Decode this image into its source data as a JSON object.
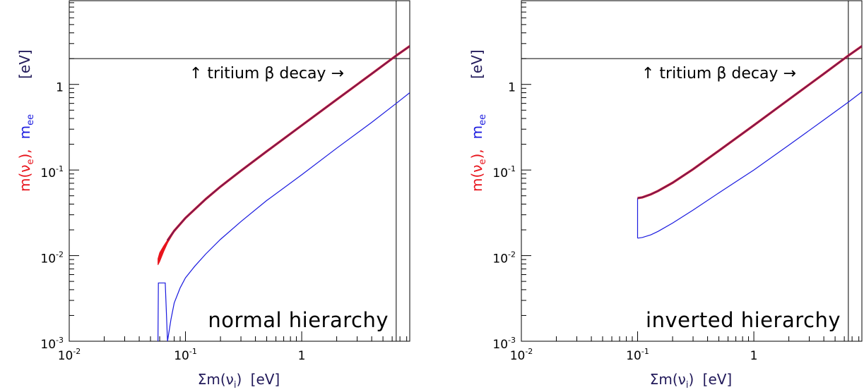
{
  "chart_data": [
    {
      "type": "line",
      "panel_label": "normal hierarchy",
      "xlabel": {
        "prefix": "Σm(ν",
        "sub": "i",
        "suffix": ")",
        "unit": "[eV]"
      },
      "ylabel": {
        "red": "m(ν",
        "red_sub": "e",
        "red_close": "),",
        "blue": "m",
        "blue_sub": "ee",
        "unit": "[eV]"
      },
      "x_scale": "log",
      "y_scale": "log",
      "xlim": [
        0.01,
        8.5
      ],
      "ylim": [
        0.001,
        9.5
      ],
      "x_ticks": [
        {
          "value": 0.01,
          "base": "10",
          "exp": "-2"
        },
        {
          "value": 0.1,
          "base": "10",
          "exp": "-1"
        },
        {
          "value": 1,
          "base": "1",
          "exp": ""
        }
      ],
      "y_ticks": [
        {
          "value": 0.001,
          "base": "10",
          "exp": "-3"
        },
        {
          "value": 0.01,
          "base": "10",
          "exp": "-2"
        },
        {
          "value": 0.1,
          "base": "10",
          "exp": "-1"
        },
        {
          "value": 1,
          "base": "1",
          "exp": ""
        }
      ],
      "colors": {
        "m_nu_e": "#e8141c",
        "m_ee": "#1a1adf",
        "m_ee_upper": "#7a1a55",
        "frame": "#000000"
      },
      "limits": {
        "tritium_y": 2.0,
        "cosmology_x": 6.5
      },
      "annotation": {
        "text": "↑  tritium β decay  →"
      },
      "series": {
        "m_nu_e_band_upper": {
          "x": [
            0.058,
            0.06,
            0.065,
            0.07,
            0.08,
            0.1
          ],
          "y": [
            0.0092,
            0.0108,
            0.013,
            0.0152,
            0.0195,
            0.0275
          ]
        },
        "m_nu_e_band_lower": {
          "x": [
            0.058,
            0.06,
            0.065,
            0.07,
            0.08,
            0.1
          ],
          "y": [
            0.0078,
            0.0085,
            0.0112,
            0.014,
            0.019,
            0.0272
          ]
        },
        "m_ee_upper": {
          "x": [
            0.07,
            0.08,
            0.1,
            0.15,
            0.2,
            0.3,
            0.5,
            1,
            2,
            4,
            6.5,
            8.5
          ],
          "y": [
            0.015,
            0.0195,
            0.0275,
            0.046,
            0.064,
            0.098,
            0.165,
            0.332,
            0.665,
            1.33,
            2.17,
            2.8
          ]
        },
        "m_ee_lower": {
          "x": [
            0.058,
            0.0585,
            0.06,
            0.063,
            0.067,
            0.07,
            0.075,
            0.08,
            0.09,
            0.1,
            0.12,
            0.15,
            0.2,
            0.3,
            0.5,
            1,
            2,
            4,
            6.5,
            8.5
          ],
          "y": [
            0.001,
            0.0048,
            0.0048,
            0.0048,
            0.0048,
            0.001,
            0.0018,
            0.0028,
            0.0042,
            0.0055,
            0.0075,
            0.0105,
            0.0155,
            0.025,
            0.044,
            0.088,
            0.18,
            0.36,
            0.6,
            0.8
          ]
        }
      }
    },
    {
      "type": "line",
      "panel_label": "inverted hierarchy",
      "xlabel": {
        "prefix": "Σm(ν",
        "sub": "i",
        "suffix": ")",
        "unit": "[eV]"
      },
      "ylabel": {
        "red": "m(ν",
        "red_sub": "e",
        "red_close": "),",
        "blue": "m",
        "blue_sub": "ee",
        "unit": "[eV]"
      },
      "x_scale": "log",
      "y_scale": "log",
      "xlim": [
        0.01,
        8.5
      ],
      "ylim": [
        0.001,
        9.5
      ],
      "x_ticks": [
        {
          "value": 0.01,
          "base": "10",
          "exp": "-2"
        },
        {
          "value": 0.1,
          "base": "10",
          "exp": "-1"
        },
        {
          "value": 1,
          "base": "1",
          "exp": ""
        }
      ],
      "y_ticks": [
        {
          "value": 0.001,
          "base": "10",
          "exp": "-3"
        },
        {
          "value": 0.01,
          "base": "10",
          "exp": "-2"
        },
        {
          "value": 0.1,
          "base": "10",
          "exp": "-1"
        },
        {
          "value": 1,
          "base": "1",
          "exp": ""
        }
      ],
      "colors": {
        "m_nu_e": "#e8141c",
        "m_ee": "#1a1adf",
        "m_ee_upper": "#7a1a55",
        "frame": "#000000"
      },
      "limits": {
        "tritium_y": 2.0,
        "cosmology_x": 6.5
      },
      "annotation": {
        "text": "↑  tritium β decay  →"
      },
      "series": {
        "m_ee_upper": {
          "x": [
            0.1,
            0.11,
            0.13,
            0.15,
            0.2,
            0.3,
            0.5,
            1,
            2,
            4,
            6.5,
            8.5
          ],
          "y": [
            0.047,
            0.048,
            0.052,
            0.057,
            0.071,
            0.102,
            0.168,
            0.333,
            0.667,
            1.33,
            2.17,
            2.8
          ]
        },
        "m_ee_lower": {
          "x": [
            0.1,
            0.11,
            0.13,
            0.15,
            0.2,
            0.3,
            0.5,
            1,
            2,
            4,
            6.5,
            8.5
          ],
          "y": [
            0.016,
            0.0163,
            0.0175,
            0.0192,
            0.024,
            0.034,
            0.054,
            0.1,
            0.195,
            0.385,
            0.62,
            0.82
          ]
        },
        "m_ee_min_edge": {
          "x": [
            0.1,
            0.1
          ],
          "y": [
            0.016,
            0.047
          ]
        }
      }
    }
  ]
}
